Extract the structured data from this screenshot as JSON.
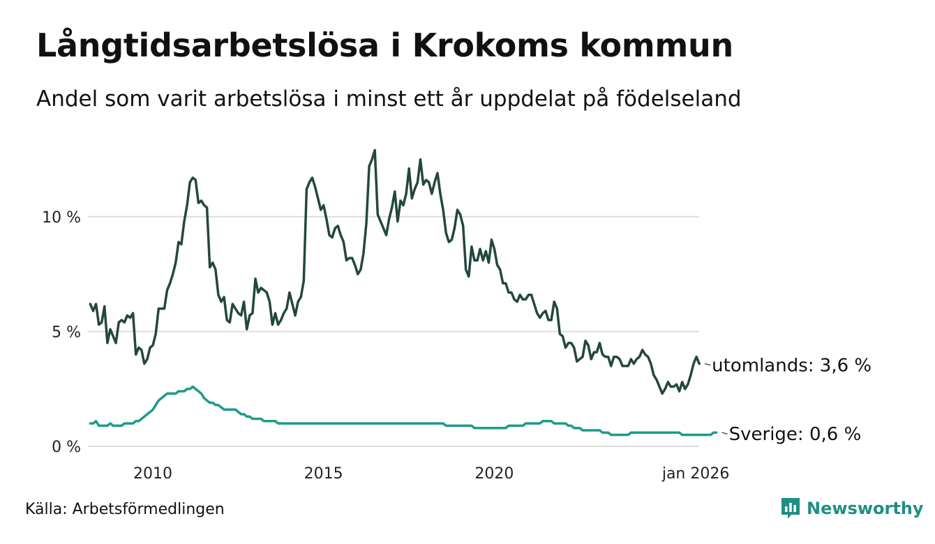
{
  "title": "Långtidsarbetslösa i Krokoms kommun",
  "subtitle": "Andel som varit arbetslösa i minst ett år uppdelat på födelseland",
  "source": "Källa: Arbetsförmedlingen",
  "brand": {
    "name": "Newsworthy",
    "icon": "newsworthy-logo-icon"
  },
  "colors": {
    "utomlands": "#23473f",
    "sverige": "#1e9a8c",
    "grid": "#dddddd"
  },
  "chart_data": {
    "type": "line",
    "title": "Långtidsarbetslösa i Krokoms kommun",
    "xlabel": "",
    "ylabel": "",
    "x_start": 2008.17,
    "x_step": 0.0833333,
    "xlim": [
      2008.1,
      2026.0
    ],
    "ylim": [
      0,
      13
    ],
    "grid": true,
    "x_ticks": [
      {
        "value": 2010,
        "label": "2010"
      },
      {
        "value": 2015,
        "label": "2015"
      },
      {
        "value": 2020,
        "label": "2020"
      },
      {
        "value": 2025.9,
        "label": "jan 2026"
      }
    ],
    "y_ticks": [
      {
        "value": 0,
        "label": "0 %"
      },
      {
        "value": 5,
        "label": "5 %"
      },
      {
        "value": 10,
        "label": "10 %"
      }
    ],
    "series": [
      {
        "name": "utomlands",
        "end_label": "utomlands: 3,6 %",
        "values": [
          6.2,
          5.9,
          6.2,
          5.3,
          5.4,
          6.1,
          4.5,
          5.1,
          4.8,
          4.5,
          5.4,
          5.5,
          5.4,
          5.7,
          5.6,
          5.8,
          4.0,
          4.3,
          4.2,
          3.6,
          3.8,
          4.3,
          4.4,
          4.9,
          6.0,
          6.0,
          6.0,
          6.8,
          7.1,
          7.5,
          8.0,
          8.9,
          8.8,
          9.8,
          10.5,
          11.5,
          11.7,
          11.6,
          10.6,
          10.7,
          10.5,
          10.4,
          7.8,
          8.0,
          7.7,
          6.6,
          6.3,
          6.5,
          5.5,
          5.4,
          6.2,
          6.0,
          5.8,
          5.7,
          6.3,
          5.1,
          5.7,
          5.8,
          7.3,
          6.7,
          6.9,
          6.8,
          6.7,
          6.3,
          5.3,
          5.8,
          5.3,
          5.5,
          5.8,
          6.0,
          6.7,
          6.2,
          5.7,
          6.3,
          6.5,
          7.2,
          11.2,
          11.5,
          11.7,
          11.3,
          10.8,
          10.3,
          10.5,
          9.9,
          9.2,
          9.1,
          9.5,
          9.6,
          9.2,
          8.9,
          8.1,
          8.2,
          8.2,
          7.9,
          7.5,
          7.7,
          8.4,
          9.7,
          12.2,
          12.5,
          12.9,
          10.1,
          9.8,
          9.5,
          9.2,
          9.9,
          10.4,
          11.1,
          9.8,
          10.7,
          10.5,
          11.0,
          12.1,
          10.8,
          11.2,
          11.5,
          12.5,
          11.4,
          11.6,
          11.5,
          11.0,
          11.5,
          11.9,
          11.0,
          10.3,
          9.3,
          8.9,
          9.0,
          9.5,
          10.3,
          10.1,
          9.6,
          7.7,
          7.4,
          8.7,
          8.1,
          8.1,
          8.6,
          8.1,
          8.5,
          8.0,
          9.0,
          8.6,
          7.9,
          7.7,
          7.1,
          7.1,
          6.7,
          6.7,
          6.4,
          6.3,
          6.6,
          6.4,
          6.4,
          6.6,
          6.6,
          6.2,
          5.8,
          5.6,
          5.8,
          5.9,
          5.5,
          5.5,
          6.3,
          6.0,
          4.9,
          4.8,
          4.3,
          4.5,
          4.5,
          4.3,
          3.7,
          3.8,
          3.9,
          4.6,
          4.4,
          3.8,
          4.1,
          4.1,
          4.5,
          4.0,
          3.9,
          3.9,
          3.5,
          3.9,
          3.9,
          3.8,
          3.5,
          3.5,
          3.5,
          3.8,
          3.6,
          3.8,
          3.9,
          4.2,
          4.0,
          3.9,
          3.6,
          3.1,
          2.9,
          2.6,
          2.3,
          2.5,
          2.8,
          2.6,
          2.6,
          2.7,
          2.4,
          2.8,
          2.5,
          2.7,
          3.1,
          3.6,
          3.9,
          3.6
        ]
      },
      {
        "name": "Sverige",
        "end_label": "Sverige: 0,6 %",
        "values": [
          1.0,
          1.0,
          1.1,
          0.9,
          0.9,
          0.9,
          0.9,
          1.0,
          0.9,
          0.9,
          0.9,
          0.9,
          1.0,
          1.0,
          1.0,
          1.0,
          1.1,
          1.1,
          1.2,
          1.3,
          1.4,
          1.5,
          1.6,
          1.8,
          2.0,
          2.1,
          2.2,
          2.3,
          2.3,
          2.3,
          2.3,
          2.4,
          2.4,
          2.4,
          2.5,
          2.5,
          2.6,
          2.5,
          2.4,
          2.3,
          2.1,
          2.0,
          1.9,
          1.9,
          1.8,
          1.8,
          1.7,
          1.6,
          1.6,
          1.6,
          1.6,
          1.6,
          1.5,
          1.4,
          1.4,
          1.3,
          1.3,
          1.2,
          1.2,
          1.2,
          1.2,
          1.1,
          1.1,
          1.1,
          1.1,
          1.1,
          1.0,
          1.0,
          1.0,
          1.0,
          1.0,
          1.0,
          1.0,
          1.0,
          1.0,
          1.0,
          1.0,
          1.0,
          1.0,
          1.0,
          1.0,
          1.0,
          1.0,
          1.0,
          1.0,
          1.0,
          1.0,
          1.0,
          1.0,
          1.0,
          1.0,
          1.0,
          1.0,
          1.0,
          1.0,
          1.0,
          1.0,
          1.0,
          1.0,
          1.0,
          1.0,
          1.0,
          1.0,
          1.0,
          1.0,
          1.0,
          1.0,
          1.0,
          1.0,
          1.0,
          1.0,
          1.0,
          1.0,
          1.0,
          1.0,
          1.0,
          1.0,
          1.0,
          1.0,
          1.0,
          1.0,
          1.0,
          1.0,
          1.0,
          1.0,
          0.9,
          0.9,
          0.9,
          0.9,
          0.9,
          0.9,
          0.9,
          0.9,
          0.9,
          0.9,
          0.8,
          0.8,
          0.8,
          0.8,
          0.8,
          0.8,
          0.8,
          0.8,
          0.8,
          0.8,
          0.8,
          0.8,
          0.9,
          0.9,
          0.9,
          0.9,
          0.9,
          0.9,
          1.0,
          1.0,
          1.0,
          1.0,
          1.0,
          1.0,
          1.1,
          1.1,
          1.1,
          1.1,
          1.0,
          1.0,
          1.0,
          1.0,
          1.0,
          0.9,
          0.9,
          0.8,
          0.8,
          0.8,
          0.7,
          0.7,
          0.7,
          0.7,
          0.7,
          0.7,
          0.7,
          0.6,
          0.6,
          0.6,
          0.5,
          0.5,
          0.5,
          0.5,
          0.5,
          0.5,
          0.5,
          0.6,
          0.6,
          0.6,
          0.6,
          0.6,
          0.6,
          0.6,
          0.6,
          0.6,
          0.6,
          0.6,
          0.6,
          0.6,
          0.6,
          0.6,
          0.6,
          0.6,
          0.6,
          0.5,
          0.5,
          0.5,
          0.5,
          0.5,
          0.5,
          0.5,
          0.5,
          0.5,
          0.5,
          0.5,
          0.6,
          0.6
        ]
      }
    ]
  }
}
